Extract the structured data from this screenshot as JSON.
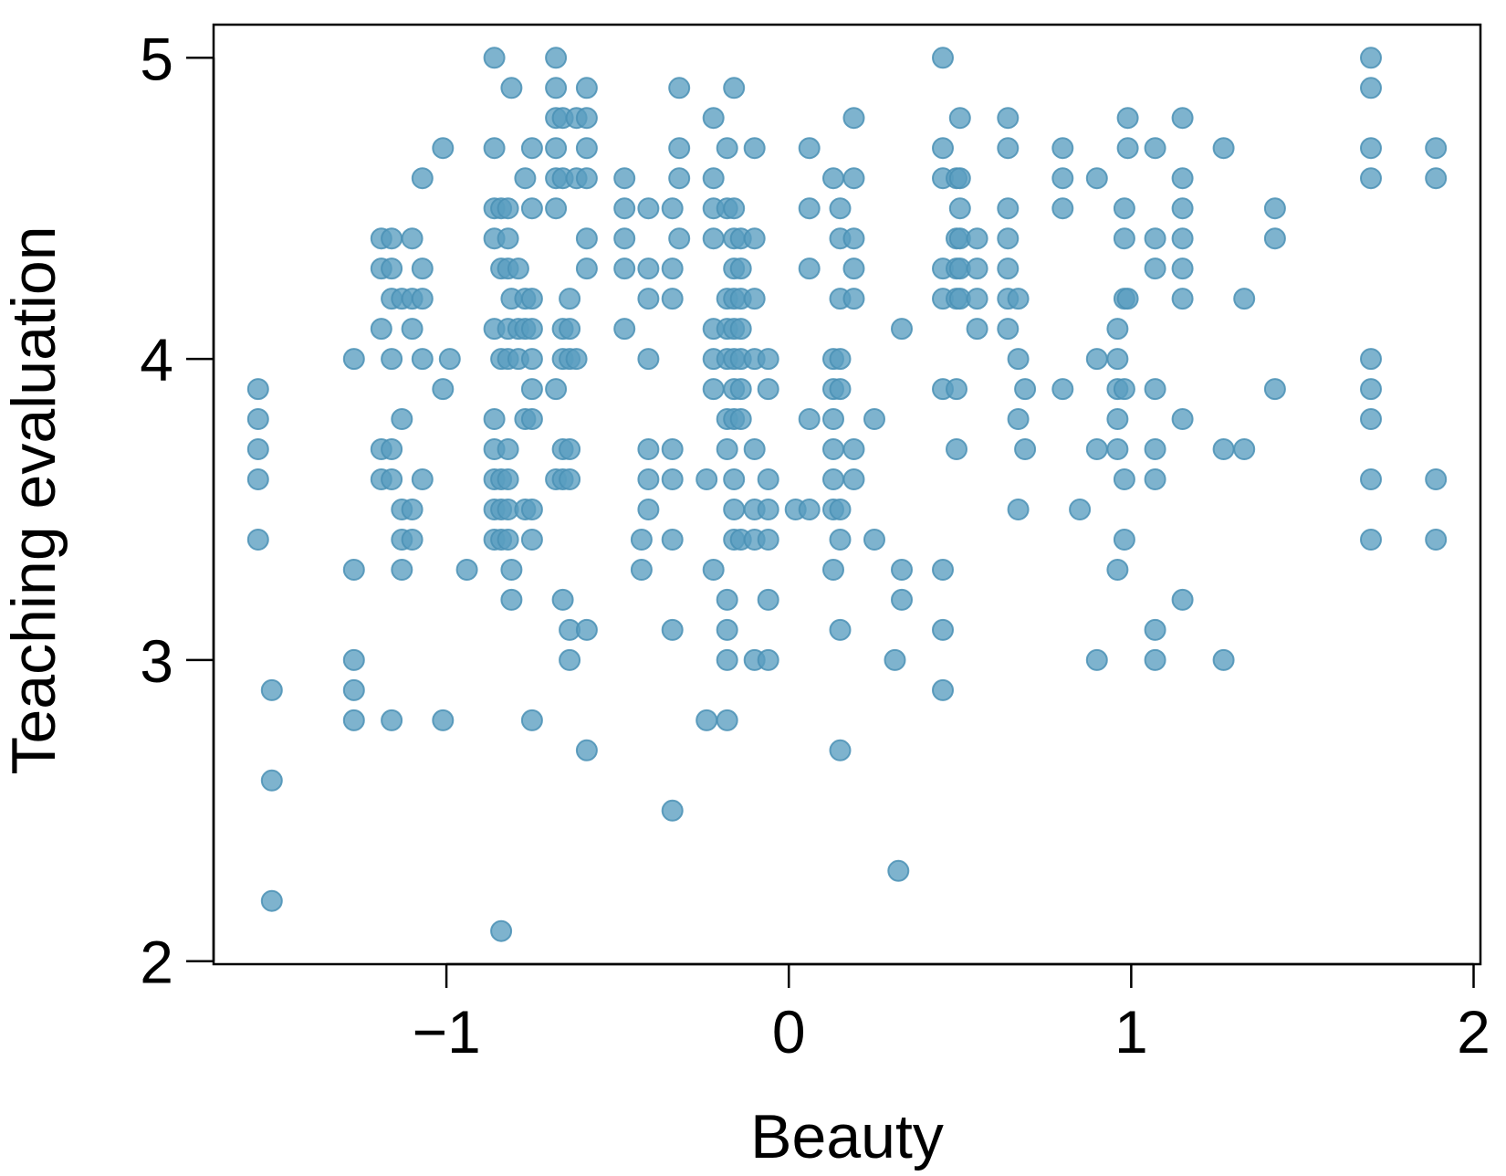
{
  "chart_data": {
    "type": "scatter",
    "title": "",
    "xlabel": "Beauty",
    "ylabel": "Teaching evaluation",
    "xlim": [
      -1.68,
      2.02
    ],
    "ylim": [
      1.99,
      5.11
    ],
    "x_ticks": [
      -1,
      0,
      1,
      2
    ],
    "x_tick_labels": [
      "−1",
      "0",
      "1",
      "2"
    ],
    "y_ticks": [
      2,
      3,
      4,
      5
    ],
    "y_tick_labels": [
      "2",
      "3",
      "4",
      "5"
    ],
    "grid": false,
    "legend": "none",
    "point_color": "#5a9ec0",
    "point_stroke": "#4a90b5",
    "points": [
      [
        -1.55,
        3.9
      ],
      [
        -1.55,
        3.8
      ],
      [
        -1.55,
        3.7
      ],
      [
        -1.55,
        3.6
      ],
      [
        -1.55,
        3.4
      ],
      [
        -1.51,
        2.9
      ],
      [
        -1.51,
        2.6
      ],
      [
        -1.51,
        2.2
      ],
      [
        -1.27,
        4.0
      ],
      [
        -1.27,
        3.3
      ],
      [
        -1.27,
        3.0
      ],
      [
        -1.27,
        2.9
      ],
      [
        -1.27,
        2.8
      ],
      [
        -1.19,
        4.4
      ],
      [
        -1.19,
        4.3
      ],
      [
        -1.19,
        4.1
      ],
      [
        -1.19,
        3.7
      ],
      [
        -1.19,
        3.6
      ],
      [
        -1.16,
        4.4
      ],
      [
        -1.16,
        4.3
      ],
      [
        -1.16,
        4.2
      ],
      [
        -1.16,
        4.0
      ],
      [
        -1.16,
        3.7
      ],
      [
        -1.16,
        3.6
      ],
      [
        -1.16,
        2.8
      ],
      [
        -1.13,
        4.2
      ],
      [
        -1.13,
        3.8
      ],
      [
        -1.13,
        3.5
      ],
      [
        -1.13,
        3.4
      ],
      [
        -1.13,
        3.3
      ],
      [
        -1.1,
        4.4
      ],
      [
        -1.1,
        4.2
      ],
      [
        -1.1,
        4.1
      ],
      [
        -1.1,
        3.5
      ],
      [
        -1.1,
        3.4
      ],
      [
        -1.07,
        4.6
      ],
      [
        -1.07,
        4.3
      ],
      [
        -1.07,
        4.2
      ],
      [
        -1.07,
        4.0
      ],
      [
        -1.07,
        3.6
      ],
      [
        -1.01,
        4.7
      ],
      [
        -1.01,
        3.9
      ],
      [
        -1.01,
        2.8
      ],
      [
        -0.99,
        4.0
      ],
      [
        -0.94,
        3.3
      ],
      [
        -0.86,
        5.0
      ],
      [
        -0.86,
        4.7
      ],
      [
        -0.86,
        4.5
      ],
      [
        -0.86,
        4.4
      ],
      [
        -0.86,
        4.1
      ],
      [
        -0.86,
        3.8
      ],
      [
        -0.86,
        3.7
      ],
      [
        -0.86,
        3.6
      ],
      [
        -0.86,
        3.5
      ],
      [
        -0.86,
        3.4
      ],
      [
        -0.84,
        4.5
      ],
      [
        -0.84,
        4.3
      ],
      [
        -0.84,
        4.0
      ],
      [
        -0.84,
        3.6
      ],
      [
        -0.84,
        3.5
      ],
      [
        -0.84,
        3.4
      ],
      [
        -0.84,
        2.1
      ],
      [
        -0.82,
        4.5
      ],
      [
        -0.82,
        4.4
      ],
      [
        -0.82,
        4.3
      ],
      [
        -0.82,
        4.1
      ],
      [
        -0.82,
        4.0
      ],
      [
        -0.82,
        3.7
      ],
      [
        -0.82,
        3.6
      ],
      [
        -0.82,
        3.5
      ],
      [
        -0.82,
        3.4
      ],
      [
        -0.81,
        4.9
      ],
      [
        -0.81,
        4.2
      ],
      [
        -0.81,
        3.3
      ],
      [
        -0.81,
        3.2
      ],
      [
        -0.79,
        4.3
      ],
      [
        -0.79,
        4.1
      ],
      [
        -0.79,
        4.0
      ],
      [
        -0.77,
        4.6
      ],
      [
        -0.77,
        4.2
      ],
      [
        -0.77,
        4.1
      ],
      [
        -0.77,
        3.8
      ],
      [
        -0.77,
        3.5
      ],
      [
        -0.75,
        4.7
      ],
      [
        -0.75,
        4.5
      ],
      [
        -0.75,
        4.2
      ],
      [
        -0.75,
        4.1
      ],
      [
        -0.75,
        4.0
      ],
      [
        -0.75,
        3.9
      ],
      [
        -0.75,
        3.8
      ],
      [
        -0.75,
        3.5
      ],
      [
        -0.75,
        3.4
      ],
      [
        -0.75,
        2.8
      ],
      [
        -0.68,
        5.0
      ],
      [
        -0.68,
        4.9
      ],
      [
        -0.68,
        4.8
      ],
      [
        -0.68,
        4.7
      ],
      [
        -0.68,
        4.6
      ],
      [
        -0.68,
        4.5
      ],
      [
        -0.68,
        3.9
      ],
      [
        -0.68,
        3.6
      ],
      [
        -0.66,
        4.8
      ],
      [
        -0.66,
        4.6
      ],
      [
        -0.66,
        4.1
      ],
      [
        -0.66,
        4.0
      ],
      [
        -0.66,
        3.7
      ],
      [
        -0.66,
        3.6
      ],
      [
        -0.66,
        3.2
      ],
      [
        -0.64,
        4.2
      ],
      [
        -0.64,
        4.1
      ],
      [
        -0.64,
        4.0
      ],
      [
        -0.64,
        3.7
      ],
      [
        -0.64,
        3.6
      ],
      [
        -0.64,
        3.1
      ],
      [
        -0.64,
        3.0
      ],
      [
        -0.62,
        4.8
      ],
      [
        -0.62,
        4.6
      ],
      [
        -0.62,
        4.0
      ],
      [
        -0.59,
        4.9
      ],
      [
        -0.59,
        4.8
      ],
      [
        -0.59,
        4.7
      ],
      [
        -0.59,
        4.6
      ],
      [
        -0.59,
        4.4
      ],
      [
        -0.59,
        4.3
      ],
      [
        -0.59,
        3.1
      ],
      [
        -0.59,
        2.7
      ],
      [
        -0.48,
        4.6
      ],
      [
        -0.48,
        4.5
      ],
      [
        -0.48,
        4.4
      ],
      [
        -0.48,
        4.3
      ],
      [
        -0.48,
        4.1
      ],
      [
        -0.41,
        4.5
      ],
      [
        -0.41,
        4.3
      ],
      [
        -0.41,
        4.2
      ],
      [
        -0.41,
        4.0
      ],
      [
        -0.41,
        3.7
      ],
      [
        -0.41,
        3.6
      ],
      [
        -0.41,
        3.5
      ],
      [
        -0.43,
        3.4
      ],
      [
        -0.43,
        3.3
      ],
      [
        -0.34,
        4.5
      ],
      [
        -0.34,
        4.3
      ],
      [
        -0.34,
        4.2
      ],
      [
        -0.34,
        3.7
      ],
      [
        -0.34,
        3.6
      ],
      [
        -0.34,
        3.4
      ],
      [
        -0.34,
        3.1
      ],
      [
        -0.34,
        2.5
      ],
      [
        -0.32,
        4.9
      ],
      [
        -0.32,
        4.7
      ],
      [
        -0.32,
        4.6
      ],
      [
        -0.32,
        4.4
      ],
      [
        -0.24,
        3.6
      ],
      [
        -0.24,
        2.8
      ],
      [
        -0.22,
        4.8
      ],
      [
        -0.22,
        4.6
      ],
      [
        -0.22,
        4.5
      ],
      [
        -0.22,
        4.4
      ],
      [
        -0.22,
        4.1
      ],
      [
        -0.22,
        4.0
      ],
      [
        -0.22,
        3.9
      ],
      [
        -0.22,
        3.3
      ],
      [
        -0.18,
        4.7
      ],
      [
        -0.18,
        4.5
      ],
      [
        -0.18,
        4.2
      ],
      [
        -0.18,
        4.1
      ],
      [
        -0.18,
        4.0
      ],
      [
        -0.18,
        3.8
      ],
      [
        -0.18,
        3.7
      ],
      [
        -0.18,
        3.2
      ],
      [
        -0.18,
        3.1
      ],
      [
        -0.18,
        3.0
      ],
      [
        -0.18,
        2.8
      ],
      [
        -0.16,
        4.9
      ],
      [
        -0.16,
        4.5
      ],
      [
        -0.16,
        4.4
      ],
      [
        -0.16,
        4.3
      ],
      [
        -0.16,
        4.2
      ],
      [
        -0.16,
        4.1
      ],
      [
        -0.16,
        4.0
      ],
      [
        -0.16,
        3.9
      ],
      [
        -0.16,
        3.8
      ],
      [
        -0.16,
        3.6
      ],
      [
        -0.16,
        3.5
      ],
      [
        -0.16,
        3.4
      ],
      [
        -0.14,
        4.4
      ],
      [
        -0.14,
        4.3
      ],
      [
        -0.14,
        4.2
      ],
      [
        -0.14,
        4.1
      ],
      [
        -0.14,
        4.0
      ],
      [
        -0.14,
        3.9
      ],
      [
        -0.14,
        3.8
      ],
      [
        -0.14,
        3.4
      ],
      [
        -0.1,
        4.7
      ],
      [
        -0.1,
        4.4
      ],
      [
        -0.1,
        4.2
      ],
      [
        -0.1,
        4.0
      ],
      [
        -0.1,
        3.7
      ],
      [
        -0.1,
        3.5
      ],
      [
        -0.1,
        3.4
      ],
      [
        -0.1,
        3.0
      ],
      [
        -0.06,
        4.0
      ],
      [
        -0.06,
        3.9
      ],
      [
        -0.06,
        3.6
      ],
      [
        -0.06,
        3.5
      ],
      [
        -0.06,
        3.4
      ],
      [
        -0.06,
        3.2
      ],
      [
        -0.06,
        3.0
      ],
      [
        0.02,
        3.5
      ],
      [
        0.06,
        4.7
      ],
      [
        0.06,
        4.5
      ],
      [
        0.06,
        4.3
      ],
      [
        0.06,
        3.8
      ],
      [
        0.06,
        3.5
      ],
      [
        0.13,
        4.6
      ],
      [
        0.13,
        4.0
      ],
      [
        0.13,
        3.9
      ],
      [
        0.13,
        3.8
      ],
      [
        0.13,
        3.7
      ],
      [
        0.13,
        3.6
      ],
      [
        0.13,
        3.5
      ],
      [
        0.13,
        3.3
      ],
      [
        0.15,
        4.5
      ],
      [
        0.15,
        4.4
      ],
      [
        0.15,
        4.2
      ],
      [
        0.15,
        4.0
      ],
      [
        0.15,
        3.9
      ],
      [
        0.15,
        3.5
      ],
      [
        0.15,
        3.4
      ],
      [
        0.15,
        3.1
      ],
      [
        0.15,
        2.7
      ],
      [
        0.19,
        4.8
      ],
      [
        0.19,
        4.6
      ],
      [
        0.19,
        4.4
      ],
      [
        0.19,
        4.3
      ],
      [
        0.19,
        4.2
      ],
      [
        0.19,
        3.7
      ],
      [
        0.19,
        3.6
      ],
      [
        0.25,
        3.8
      ],
      [
        0.25,
        3.4
      ],
      [
        0.31,
        3.0
      ],
      [
        0.32,
        2.3
      ],
      [
        0.33,
        4.1
      ],
      [
        0.33,
        3.3
      ],
      [
        0.33,
        3.2
      ],
      [
        0.45,
        5.0
      ],
      [
        0.45,
        4.7
      ],
      [
        0.45,
        4.6
      ],
      [
        0.45,
        4.3
      ],
      [
        0.45,
        4.2
      ],
      [
        0.45,
        3.9
      ],
      [
        0.45,
        3.3
      ],
      [
        0.45,
        3.1
      ],
      [
        0.45,
        2.9
      ],
      [
        0.49,
        4.6
      ],
      [
        0.49,
        4.4
      ],
      [
        0.49,
        4.3
      ],
      [
        0.49,
        4.2
      ],
      [
        0.49,
        3.9
      ],
      [
        0.49,
        3.7
      ],
      [
        0.5,
        4.8
      ],
      [
        0.5,
        4.6
      ],
      [
        0.5,
        4.5
      ],
      [
        0.5,
        4.4
      ],
      [
        0.5,
        4.3
      ],
      [
        0.5,
        4.2
      ],
      [
        0.55,
        4.4
      ],
      [
        0.55,
        4.3
      ],
      [
        0.55,
        4.2
      ],
      [
        0.55,
        4.1
      ],
      [
        0.64,
        4.8
      ],
      [
        0.64,
        4.7
      ],
      [
        0.64,
        4.5
      ],
      [
        0.64,
        4.4
      ],
      [
        0.64,
        4.3
      ],
      [
        0.64,
        4.2
      ],
      [
        0.64,
        4.1
      ],
      [
        0.67,
        4.2
      ],
      [
        0.67,
        4.0
      ],
      [
        0.67,
        3.8
      ],
      [
        0.67,
        3.5
      ],
      [
        0.69,
        3.9
      ],
      [
        0.69,
        3.7
      ],
      [
        0.8,
        4.7
      ],
      [
        0.8,
        4.6
      ],
      [
        0.8,
        4.5
      ],
      [
        0.8,
        3.9
      ],
      [
        0.85,
        3.5
      ],
      [
        0.9,
        4.6
      ],
      [
        0.9,
        4.0
      ],
      [
        0.9,
        3.7
      ],
      [
        0.9,
        3.0
      ],
      [
        0.96,
        4.1
      ],
      [
        0.96,
        4.0
      ],
      [
        0.96,
        3.9
      ],
      [
        0.96,
        3.8
      ],
      [
        0.96,
        3.7
      ],
      [
        0.96,
        3.3
      ],
      [
        0.98,
        4.5
      ],
      [
        0.98,
        4.4
      ],
      [
        0.98,
        4.2
      ],
      [
        0.98,
        3.9
      ],
      [
        0.98,
        3.6
      ],
      [
        0.98,
        3.4
      ],
      [
        0.99,
        4.8
      ],
      [
        0.99,
        4.7
      ],
      [
        0.99,
        4.2
      ],
      [
        1.07,
        4.7
      ],
      [
        1.07,
        4.4
      ],
      [
        1.07,
        4.3
      ],
      [
        1.07,
        3.9
      ],
      [
        1.07,
        3.7
      ],
      [
        1.07,
        3.6
      ],
      [
        1.07,
        3.1
      ],
      [
        1.07,
        3.0
      ],
      [
        1.15,
        4.8
      ],
      [
        1.15,
        4.6
      ],
      [
        1.15,
        4.5
      ],
      [
        1.15,
        4.4
      ],
      [
        1.15,
        4.3
      ],
      [
        1.15,
        4.2
      ],
      [
        1.15,
        3.8
      ],
      [
        1.15,
        3.2
      ],
      [
        1.27,
        4.7
      ],
      [
        1.27,
        3.7
      ],
      [
        1.27,
        3.0
      ],
      [
        1.33,
        4.2
      ],
      [
        1.33,
        3.7
      ],
      [
        1.42,
        4.5
      ],
      [
        1.42,
        4.4
      ],
      [
        1.42,
        3.9
      ],
      [
        1.7,
        5.0
      ],
      [
        1.7,
        4.9
      ],
      [
        1.7,
        4.7
      ],
      [
        1.7,
        4.6
      ],
      [
        1.7,
        4.0
      ],
      [
        1.7,
        3.9
      ],
      [
        1.7,
        3.8
      ],
      [
        1.7,
        3.6
      ],
      [
        1.7,
        3.4
      ],
      [
        1.89,
        4.7
      ],
      [
        1.89,
        4.6
      ],
      [
        1.89,
        3.6
      ],
      [
        1.89,
        3.4
      ]
    ]
  }
}
